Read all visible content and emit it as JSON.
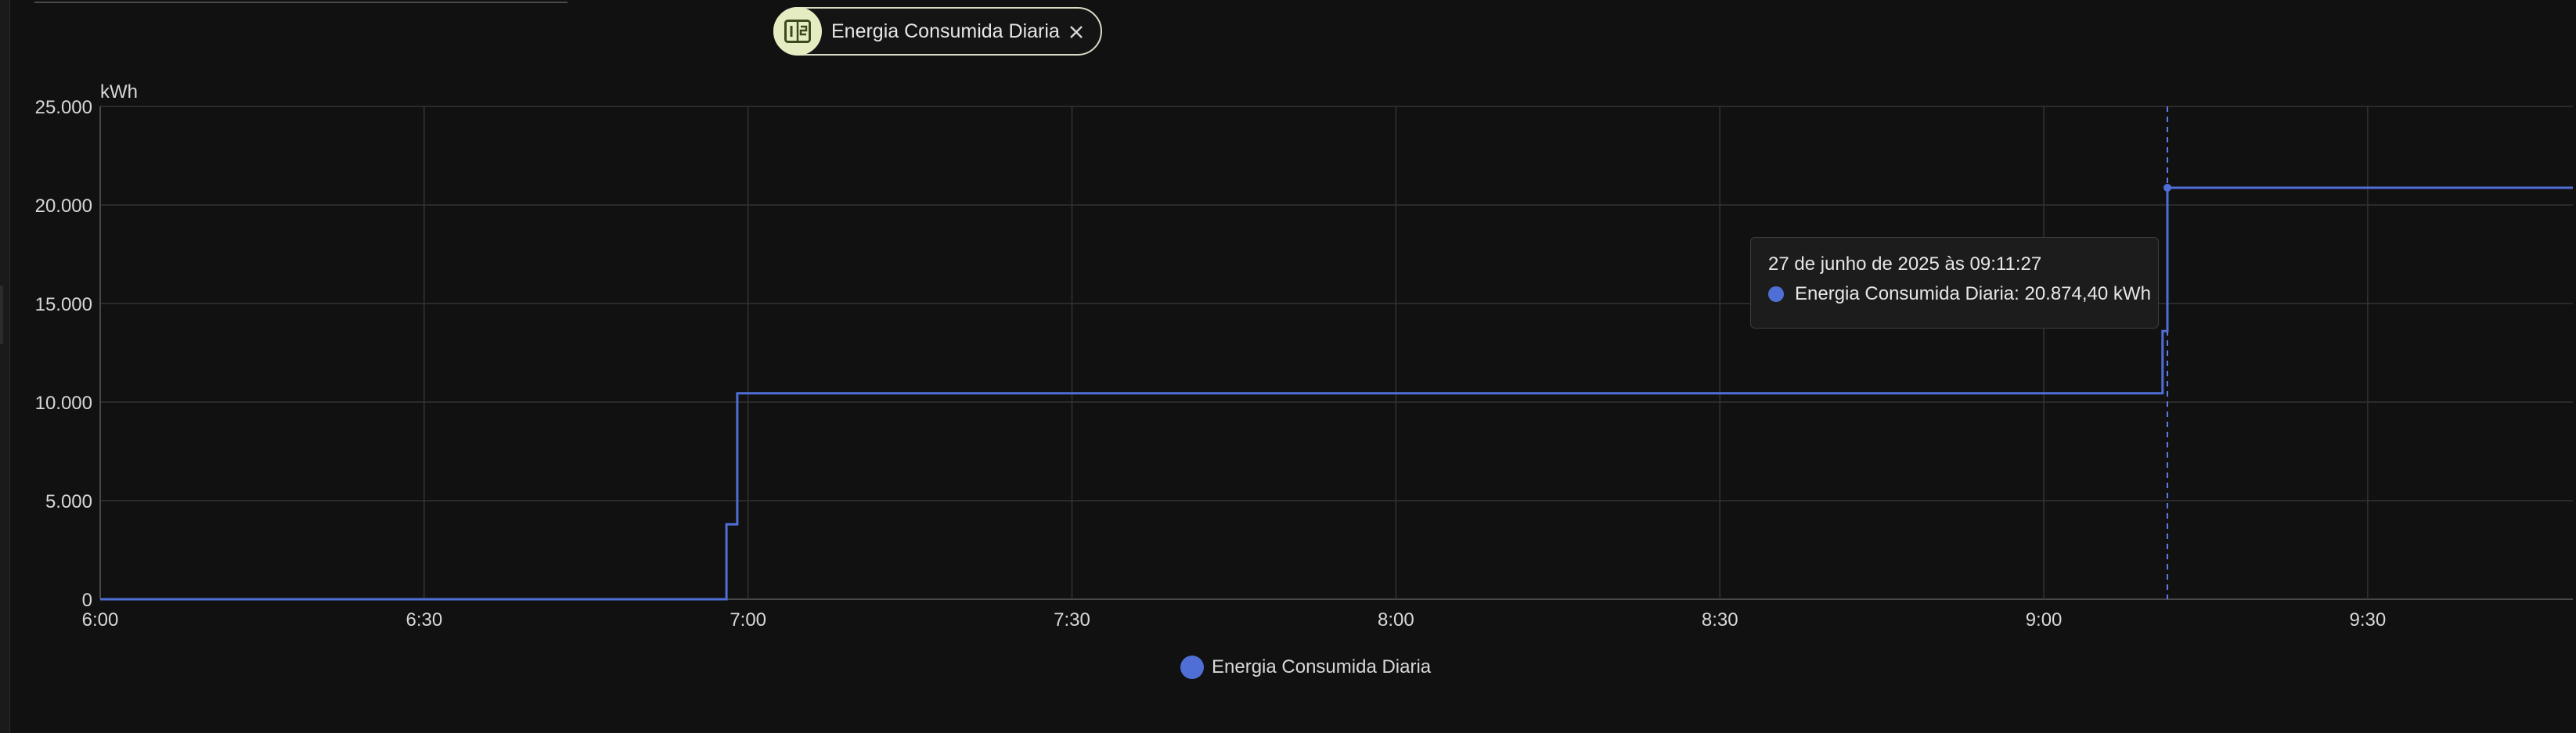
{
  "entity_chip": {
    "label": "Energia Consumida Diaria",
    "icon": "counter-icon",
    "remove_icon": "close-icon"
  },
  "colors": {
    "background": "#111111",
    "series": "#4f6fd6",
    "grid": "#333333",
    "chip_icon_bg": "#e6ecc2",
    "chip_border": "#d9dcc4"
  },
  "tooltip": {
    "title": "27 de junho de 2025 às 09:11:27",
    "series_name": "Energia Consumida Diaria",
    "value_text": "20.874,40 kWh",
    "row_text": "Energia Consumida Diaria: 20.874,40 kWh"
  },
  "legend": {
    "label": "Energia Consumida Diaria"
  },
  "chart_data": {
    "type": "line",
    "step": true,
    "y_unit": "kWh",
    "x_range": [
      "6:00",
      "9:49"
    ],
    "ylim": [
      0,
      25000
    ],
    "x_ticks": [
      "6:00",
      "6:30",
      "7:00",
      "7:30",
      "8:00",
      "8:30",
      "9:00",
      "9:30"
    ],
    "y_ticks": [
      "0",
      "5.000",
      "10.000",
      "15.000",
      "20.000",
      "25.000"
    ],
    "y_tick_values": [
      0,
      5000,
      10000,
      15000,
      20000,
      25000
    ],
    "grid": true,
    "legend_position": "bottom-center",
    "crosshair_x": "9:11:27",
    "series": [
      {
        "name": "Energia Consumida Diaria",
        "points": [
          {
            "x": "6:00",
            "y": 0
          },
          {
            "x": "6:58",
            "y": 0
          },
          {
            "x": "6:58",
            "y": 3800
          },
          {
            "x": "6:59",
            "y": 3800
          },
          {
            "x": "6:59",
            "y": 10450
          },
          {
            "x": "9:11",
            "y": 10450
          },
          {
            "x": "9:11",
            "y": 13600
          },
          {
            "x": "9:11:27",
            "y": 13600
          },
          {
            "x": "9:11:27",
            "y": 20874.4
          },
          {
            "x": "9:49",
            "y": 20874.4
          }
        ]
      }
    ]
  }
}
